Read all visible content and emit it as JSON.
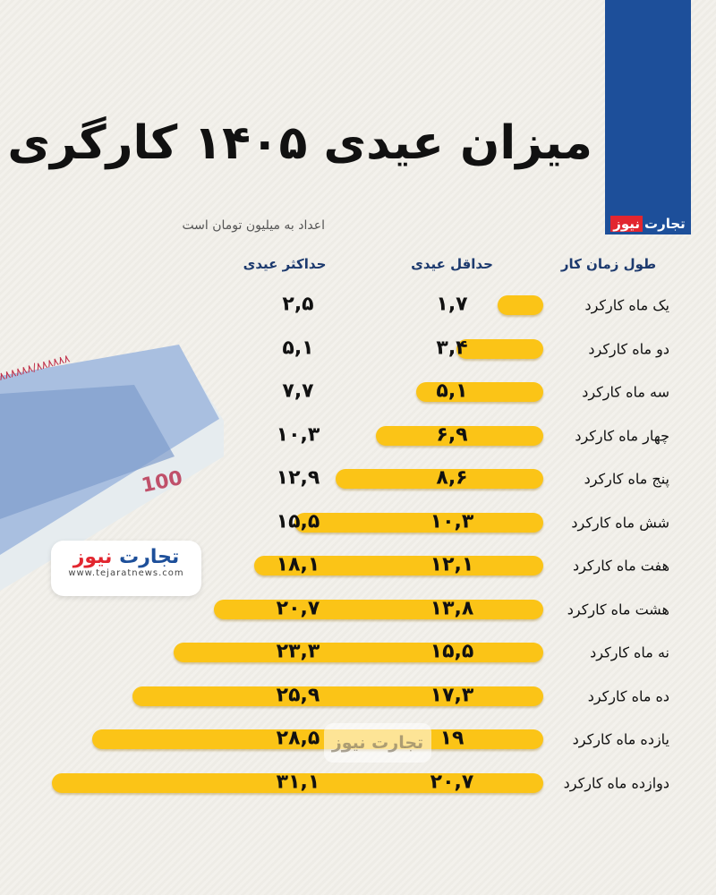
{
  "header": {
    "title": "میزان عیدی ۱۴۰۵ کارگری",
    "subtitle": "اعداد به میلیون تومان است",
    "brand": {
      "part1": "تجارت",
      "part2": "نیوز",
      "url": "www.tejaratnews.com"
    },
    "colors": {
      "banner": "#1d4f9a",
      "brand_red": "#e2262f",
      "bar": "#fbc417"
    }
  },
  "chart_data": {
    "type": "bar",
    "title": "میزان عیدی ۱۴۰۵ کارگری",
    "unit_note": "اعداد به میلیون تومان است",
    "column_headers": {
      "category": "طول زمان کار",
      "min": "حداقل عیدی",
      "max": "حداکثر عیدی"
    },
    "categories": [
      "یک ماه کارکرد",
      "دو ماه کارکرد",
      "سه ماه کارکرد",
      "چهار ماه کارکرد",
      "پنج ماه کارکرد",
      "شش ماه کارکرد",
      "هفت ماه کارکرد",
      "هشت ماه کارکرد",
      "نه ماه کارکرد",
      "ده ماه کارکرد",
      "یازده ماه کارکرد",
      "دوازده ماه کارکرد"
    ],
    "series": [
      {
        "name": "حداقل عیدی",
        "values": [
          1.7,
          3.4,
          5.1,
          6.9,
          8.6,
          10.3,
          12.1,
          13.8,
          15.5,
          17.3,
          19,
          20.7
        ],
        "labels": [
          "۱,۷",
          "۳,۴",
          "۵,۱",
          "۶,۹",
          "۸,۶",
          "۱۰,۳",
          "۱۲,۱",
          "۱۳,۸",
          "۱۵,۵",
          "۱۷,۳",
          "۱۹",
          "۲۰,۷"
        ]
      },
      {
        "name": "حداکثر عیدی",
        "values": [
          2.5,
          5.1,
          7.7,
          10.3,
          12.9,
          15.5,
          18.1,
          20.7,
          23.3,
          25.9,
          28.5,
          31.1
        ],
        "labels": [
          "۲,۵",
          "۵,۱",
          "۷,۷",
          "۱۰,۳",
          "۱۲,۹",
          "۱۵,۵",
          "۱۸,۱",
          "۲۰,۷",
          "۲۳,۳",
          "۲۵,۹",
          "۲۸,۵",
          "۳۱,۱"
        ]
      }
    ],
    "bar_length_series": "حداکثر عیدی",
    "bar_direction": "right-to-left"
  }
}
